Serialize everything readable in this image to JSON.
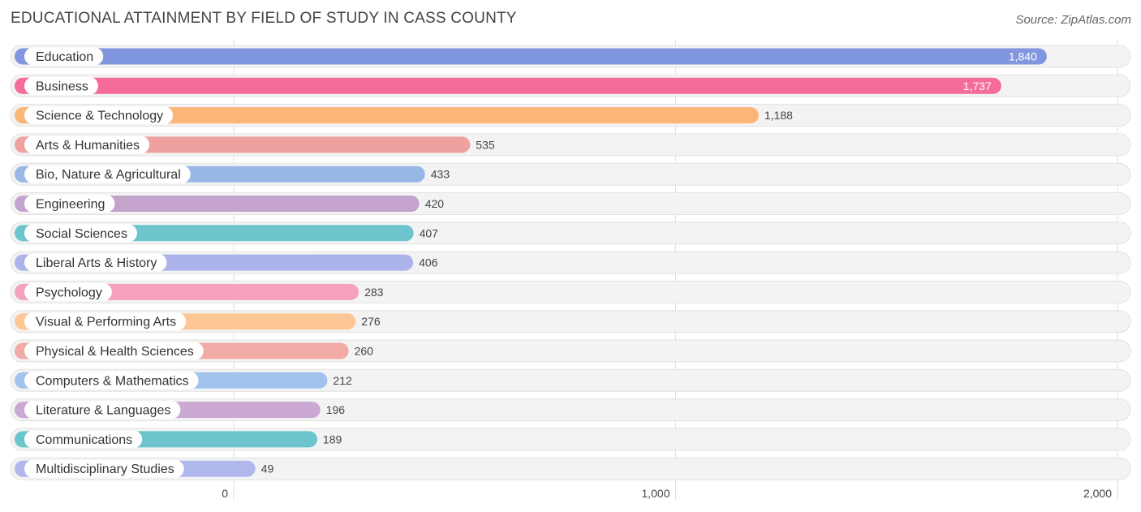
{
  "title": "EDUCATIONAL ATTAINMENT BY FIELD OF STUDY IN CASS COUNTY",
  "source": "Source: ZipAtlas.com",
  "chart_data": {
    "type": "bar",
    "orientation": "horizontal",
    "title": "EDUCATIONAL ATTAINMENT BY FIELD OF STUDY IN CASS COUNTY",
    "xlabel": "",
    "ylabel": "",
    "xlim": [
      0,
      2000
    ],
    "x_ticks": [
      0,
      1000,
      2000
    ],
    "x_tick_labels": [
      "0",
      "1,000",
      "2,000"
    ],
    "grid": true,
    "categories": [
      "Education",
      "Business",
      "Science & Technology",
      "Arts & Humanities",
      "Bio, Nature & Agricultural",
      "Engineering",
      "Social Sciences",
      "Liberal Arts & History",
      "Psychology",
      "Visual & Performing Arts",
      "Physical & Health Sciences",
      "Computers & Mathematics",
      "Literature & Languages",
      "Communications",
      "Multidisciplinary Studies"
    ],
    "values": [
      1840,
      1737,
      1188,
      535,
      433,
      420,
      407,
      406,
      283,
      276,
      260,
      212,
      196,
      189,
      49
    ],
    "value_labels": [
      "1,840",
      "1,737",
      "1,188",
      "535",
      "433",
      "420",
      "407",
      "406",
      "283",
      "276",
      "260",
      "212",
      "196",
      "189",
      "49"
    ],
    "colors": [
      "#8096de",
      "#f56b9b",
      "#fbb579",
      "#eda29f",
      "#97b8e6",
      "#c4a3cd",
      "#6cc4cc",
      "#abb3ea",
      "#f5a0bd",
      "#fcc795",
      "#f1aaa6",
      "#a2c3eb",
      "#caa9d2",
      "#6cc5cc",
      "#b0b7ed"
    ]
  }
}
